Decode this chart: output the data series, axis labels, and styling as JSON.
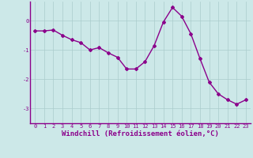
{
  "x": [
    0,
    1,
    2,
    3,
    4,
    5,
    6,
    7,
    8,
    9,
    10,
    11,
    12,
    13,
    14,
    15,
    16,
    17,
    18,
    19,
    20,
    21,
    22,
    23
  ],
  "y": [
    -0.35,
    -0.35,
    -0.32,
    -0.5,
    -0.65,
    -0.75,
    -1.0,
    -0.92,
    -1.1,
    -1.25,
    -1.65,
    -1.65,
    -1.4,
    -0.85,
    -0.05,
    0.45,
    0.15,
    -0.45,
    -1.3,
    -2.1,
    -2.5,
    -2.7,
    -2.85,
    -2.7
  ],
  "line_color": "#8B008B",
  "marker": "D",
  "marker_size": 2,
  "linewidth": 1.0,
  "bg_color": "#cce8e8",
  "plot_bg_color": "#cce8e8",
  "grid_color": "#aacccc",
  "xlabel": "Windchill (Refroidissement éolien,°C)",
  "xlabel_color": "#8B008B",
  "xlabel_fontsize": 6.5,
  "ytick_labels": [
    "0",
    "-1",
    "-2",
    "-3"
  ],
  "ytick_values": [
    0,
    -1,
    -2,
    -3
  ],
  "xtick_values": [
    0,
    1,
    2,
    3,
    4,
    5,
    6,
    7,
    8,
    9,
    10,
    11,
    12,
    13,
    14,
    15,
    16,
    17,
    18,
    19,
    20,
    21,
    22,
    23
  ],
  "xlim": [
    -0.5,
    23.5
  ],
  "ylim": [
    -3.5,
    0.65
  ],
  "tick_color": "#8B008B",
  "tick_fontsize": 5.0
}
